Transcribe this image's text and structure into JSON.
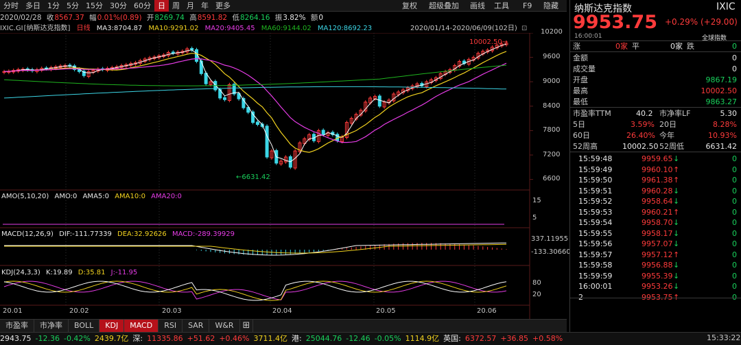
{
  "toolbar": {
    "periods": [
      "分时",
      "多日",
      "1分",
      "5分",
      "15分",
      "30分",
      "60分",
      "日",
      "周",
      "月",
      "年",
      "更多"
    ],
    "active_period": "日",
    "right_items": [
      "复权",
      "超级叠加",
      "画线",
      "工具",
      "F9",
      "隐藏"
    ]
  },
  "info": {
    "date": "2020/02/28",
    "close_label": "收",
    "close": "8567.37",
    "change_label": "幅",
    "change": "0.01%(0.89)",
    "open_label": "开",
    "open": "8269.74",
    "high_label": "高",
    "high": "8591.82",
    "low_label": "低",
    "low": "8264.16",
    "amp_label": "振",
    "amp": "3.82%",
    "vol_label": "额",
    "vol": "0"
  },
  "ma_line": {
    "code": "IXIC.GI",
    "name": "[纳斯达克指数]",
    "period": "日线",
    "ma3": "MA3:8704.87",
    "ma10": "MA10:9291.02",
    "ma20": "MA20:9405.45",
    "ma60": "MA60:9144.02",
    "ma120": "MA120:8692.23",
    "range": "2020/01/14-2020/06/09(102日)"
  },
  "price_axis": [
    "10200",
    "9600",
    "9000",
    "8400",
    "7800",
    "7200",
    "6600"
  ],
  "annotations": {
    "high_label": "10002.50",
    "low_label": "6631.42"
  },
  "amo": {
    "title": "AMO(5,10,20)",
    "amo": "AMO:0",
    "ama5": "AMA5:0",
    "ama10": "AMA10:0",
    "ama20": "AMA20:0",
    "axis": [
      "15",
      "5"
    ]
  },
  "macd": {
    "title": "MACD(12,26,9)",
    "dif": "DIF:-111.77339",
    "dea": "DEA:32.92626",
    "macd": "MACD:-289.39929",
    "axis_top": "337.11955",
    "axis_bottom": "-133.30660"
  },
  "kdj": {
    "title": "KDJ(24,3,3)",
    "k": "K:19.89",
    "d": "D:35.81",
    "j": "J:-11.95",
    "axis": [
      "80",
      "20"
    ]
  },
  "date_axis": [
    "20.01",
    "20.02",
    "20.03",
    "20.04",
    "20.05",
    "20.06"
  ],
  "bottom_tabs": [
    "市盈率",
    "市净率",
    "BOLL",
    "KDJ",
    "MACD",
    "RSI",
    "SAR",
    "W&R"
  ],
  "active_tabs": [
    "KDJ",
    "MACD"
  ],
  "status_bar": {
    "items": [
      {
        "text": "2943.75",
        "color": "white"
      },
      {
        "text": "-12.36",
        "color": "green"
      },
      {
        "text": "-0.42%",
        "color": "green"
      },
      {
        "text": "2439.7亿",
        "color": "yellow"
      },
      {
        "text": "深:",
        "color": "white"
      },
      {
        "text": "11335.86",
        "color": "red"
      },
      {
        "text": "+51.62",
        "color": "red"
      },
      {
        "text": "+0.46%",
        "color": "red"
      },
      {
        "text": "3711.4亿",
        "color": "yellow"
      },
      {
        "text": "港:",
        "color": "white"
      },
      {
        "text": "25044.76",
        "color": "green"
      },
      {
        "text": "-12.46",
        "color": "green"
      },
      {
        "text": "-0.05%",
        "color": "green"
      },
      {
        "text": "1114.9亿",
        "color": "yellow"
      },
      {
        "text": "英国:",
        "color": "white"
      },
      {
        "text": "6372.57",
        "color": "red"
      },
      {
        "text": "+36.85",
        "color": "red"
      },
      {
        "text": "+0.58%",
        "color": "red"
      }
    ],
    "time": "15:33:22"
  },
  "quote": {
    "name": "纳斯达克指数",
    "code": "IXIC",
    "price": "9953.75",
    "change": "+0.29% (+29.00)",
    "time": "16:00:01",
    "tag": "全球指数",
    "rise_label": "涨",
    "rise": "0家",
    "flat_label": "平",
    "flat": "0家",
    "fall_label": "跌",
    "fall": "0",
    "amount_label": "金额",
    "amount": "0",
    "volume_label": "成交量",
    "volume": "0",
    "open_label": "开盘",
    "open": "9867.19",
    "high_label": "最高",
    "high": "10002.50",
    "low_label": "最低",
    "low": "9863.27",
    "pe_label": "市盈率TTM",
    "pe": "40.2",
    "pb_label": "市净率LF",
    "pb": "5.30",
    "d5_label": "5日",
    "d5": "3.59%",
    "d20_label": "20日",
    "d20": "8.28%",
    "d60_label": "60日",
    "d60": "26.40%",
    "ytd_label": "今年",
    "ytd": "10.93%",
    "w52h_label": "52周高",
    "w52h": "10002.50",
    "w52l_label": "52周低",
    "w52l": "6631.42"
  },
  "ticks": [
    {
      "time": "15:59:48",
      "price": "9959.65",
      "dir": "down",
      "vol": "0"
    },
    {
      "time": "15:59:49",
      "price": "9960.10",
      "dir": "up",
      "vol": "0"
    },
    {
      "time": "15:59:50",
      "price": "9961.38",
      "dir": "up",
      "vol": "0"
    },
    {
      "time": "15:59:51",
      "price": "9960.28",
      "dir": "down",
      "vol": "0"
    },
    {
      "time": "15:59:52",
      "price": "9958.64",
      "dir": "down",
      "vol": "0"
    },
    {
      "time": "15:59:53",
      "price": "9960.21",
      "dir": "up",
      "vol": "0"
    },
    {
      "time": "15:59:54",
      "price": "9958.70",
      "dir": "down",
      "vol": "0"
    },
    {
      "time": "15:59:55",
      "price": "9958.17",
      "dir": "down",
      "vol": "0"
    },
    {
      "time": "15:59:56",
      "price": "9957.07",
      "dir": "down",
      "vol": "0"
    },
    {
      "time": "15:59:57",
      "price": "9957.12",
      "dir": "up",
      "vol": "0"
    },
    {
      "time": "15:59:58",
      "price": "9956.88",
      "dir": "down",
      "vol": "0"
    },
    {
      "time": "15:59:59",
      "price": "9955.39",
      "dir": "down",
      "vol": "0"
    },
    {
      "time": "16:00:01",
      "price": "9953.26",
      "dir": "down",
      "vol": "0"
    },
    {
      "time": "2",
      "price": "9953.75",
      "dir": "up",
      "vol": "0"
    }
  ],
  "colors": {
    "up": "#ff3b3b",
    "down": "#19d15c",
    "ma3": "#ffffff",
    "ma10": "#f2d21f",
    "ma20": "#e63ce6",
    "ma60": "#1fb51f",
    "ma120": "#3cd6e6"
  }
}
